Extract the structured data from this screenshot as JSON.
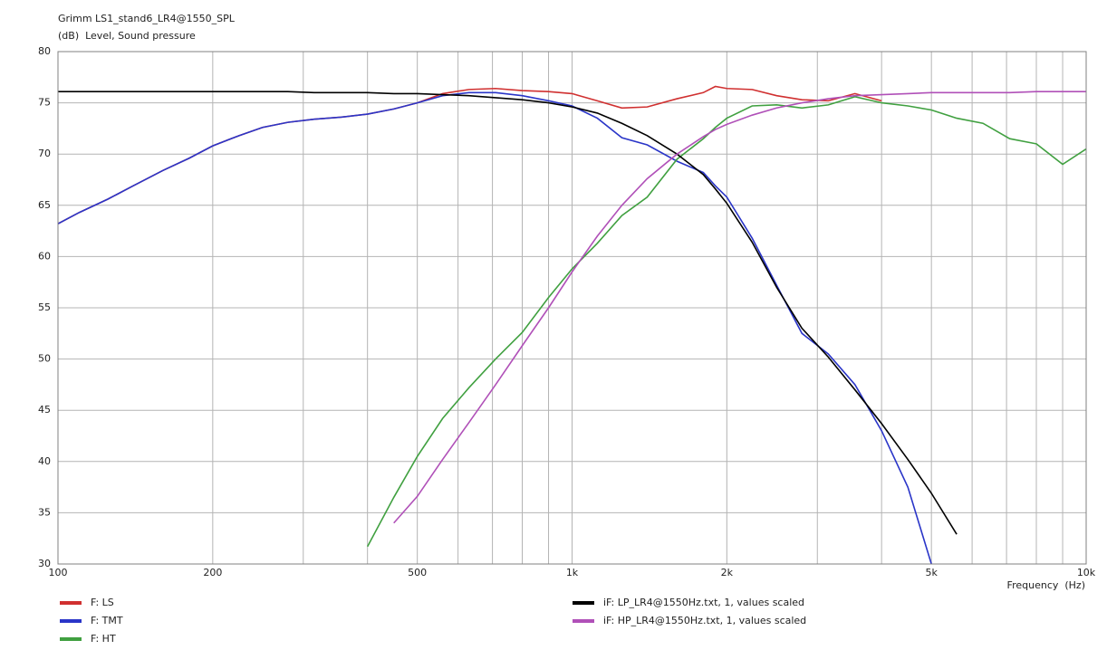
{
  "chart_data": {
    "type": "line",
    "title": "Grimm LS1_stand6_LR4@1550_SPL",
    "ylabel": "(dB)  Level, Sound pressure",
    "xlabel": "Frequency  (Hz)",
    "xscale": "log",
    "grid": true,
    "legend": "bottom",
    "xlim": [
      100,
      10000
    ],
    "ylim": [
      30,
      80
    ],
    "xticks": [
      100,
      200,
      500,
      {
        "value": 1000,
        "label": "1k"
      },
      {
        "value": 2000,
        "label": "2k"
      },
      {
        "value": 5000,
        "label": "5k"
      },
      {
        "value": 10000,
        "label": "10k"
      }
    ],
    "xgrid_minor": [
      300,
      400,
      600,
      700,
      800,
      900,
      3000,
      4000,
      6000,
      7000,
      8000,
      9000
    ],
    "yticks": [
      30,
      35,
      40,
      45,
      50,
      55,
      60,
      65,
      70,
      75,
      80
    ],
    "x": [
      100,
      110,
      125,
      140,
      160,
      180,
      200,
      225,
      250,
      280,
      315,
      355,
      400,
      450,
      500,
      560,
      630,
      710,
      800,
      900,
      1000,
      1120,
      1250,
      1400,
      1600,
      1800,
      1900,
      2000,
      2240,
      2500,
      2800,
      3150,
      3550,
      4000,
      4500,
      5000,
      5600,
      6300,
      7100,
      8000,
      9000,
      10000
    ],
    "series": [
      {
        "name": "F: LS",
        "color": "#d03030",
        "values": [
          63.2,
          64.3,
          65.6,
          66.9,
          68.4,
          69.6,
          70.8,
          71.8,
          72.6,
          73.1,
          73.4,
          73.6,
          73.9,
          74.4,
          75.0,
          75.9,
          76.3,
          76.4,
          76.2,
          76.1,
          75.9,
          75.2,
          74.5,
          74.6,
          75.4,
          76.0,
          76.6,
          76.4,
          76.3,
          75.7,
          75.3,
          75.2,
          75.9,
          75.2,
          null,
          null,
          null,
          null,
          null,
          null,
          null,
          null
        ]
      },
      {
        "name": "F: TMT",
        "color": "#2a35c8",
        "values": [
          63.2,
          64.3,
          65.6,
          66.9,
          68.4,
          69.6,
          70.8,
          71.8,
          72.6,
          73.1,
          73.4,
          73.6,
          73.9,
          74.4,
          75.0,
          75.7,
          76.0,
          76.0,
          75.7,
          75.2,
          74.7,
          73.5,
          71.6,
          70.9,
          69.3,
          68.2,
          66.9,
          65.8,
          61.8,
          57.2,
          52.5,
          50.5,
          47.5,
          43.0,
          37.5,
          30.0,
          null,
          null,
          null,
          null,
          null,
          null
        ]
      },
      {
        "name": "F: HT",
        "color": "#40a040",
        "values": [
          null,
          null,
          null,
          null,
          null,
          null,
          null,
          null,
          null,
          null,
          null,
          null,
          31.7,
          36.5,
          40.5,
          44.2,
          47.2,
          50.0,
          52.6,
          56.0,
          58.8,
          61.3,
          64.0,
          65.8,
          69.5,
          71.5,
          72.6,
          73.5,
          74.7,
          74.8,
          74.5,
          74.8,
          75.6,
          75.0,
          74.7,
          74.3,
          73.5,
          73.0,
          71.5,
          71.0,
          69.0,
          70.5
        ]
      },
      {
        "name": "iF: LP_LR4@1550Hz.txt, 1, values scaled",
        "color": "#000000",
        "values": [
          76.1,
          76.1,
          76.1,
          76.1,
          76.1,
          76.1,
          76.1,
          76.1,
          76.1,
          76.1,
          76.0,
          76.0,
          76.0,
          75.9,
          75.9,
          75.8,
          75.7,
          75.5,
          75.3,
          75.0,
          74.6,
          74.0,
          73.0,
          71.8,
          70.0,
          68.0,
          66.6,
          65.2,
          61.4,
          57.0,
          53.0,
          50.2,
          47.0,
          43.7,
          40.2,
          36.9,
          32.9,
          null,
          null,
          null,
          null,
          null
        ]
      },
      {
        "name": "iF: HP_LR4@1550Hz.txt, 1, values scaled",
        "color": "#b050b8",
        "values": [
          null,
          null,
          null,
          null,
          null,
          null,
          null,
          null,
          null,
          null,
          null,
          null,
          null,
          34.0,
          36.6,
          40.2,
          43.8,
          47.5,
          51.3,
          55.0,
          58.5,
          62.0,
          65.0,
          67.6,
          70.0,
          71.7,
          72.4,
          72.9,
          73.8,
          74.5,
          75.0,
          75.4,
          75.7,
          75.8,
          75.9,
          76.0,
          76.0,
          76.0,
          76.0,
          76.1,
          76.1,
          76.1
        ]
      }
    ]
  }
}
